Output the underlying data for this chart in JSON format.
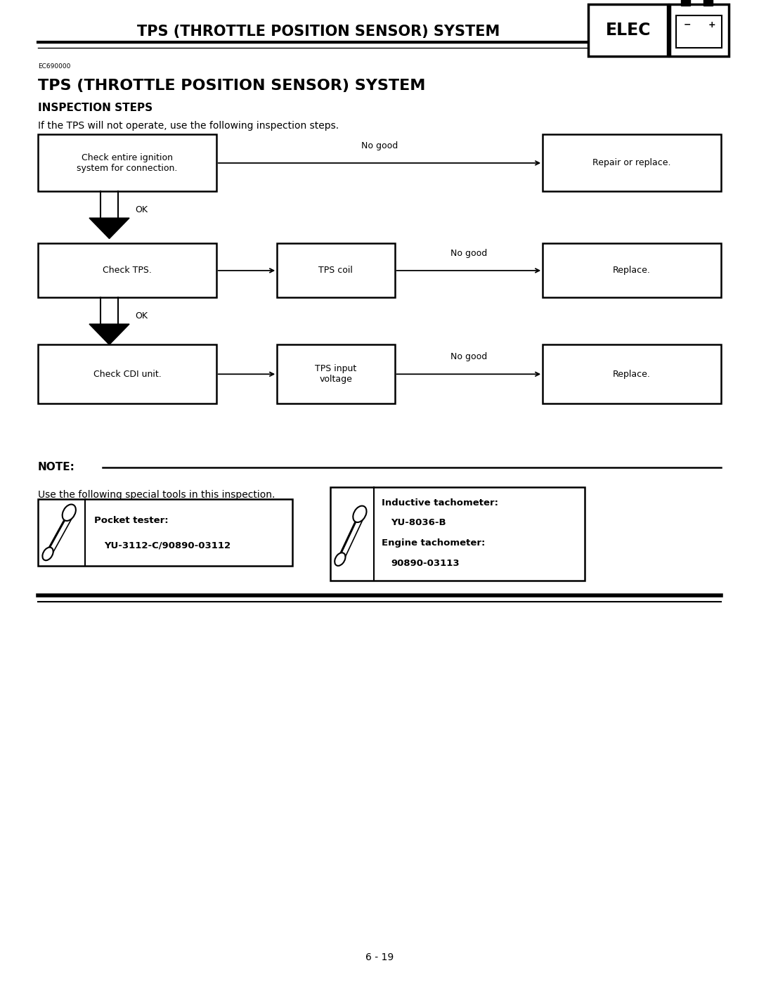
{
  "page_title": "TPS (THROTTLE POSITION SENSOR) SYSTEM",
  "elec_label": "ELEC",
  "section_code": "EC690000",
  "section_title": "TPS (THROTTLE POSITION SENSOR) SYSTEM",
  "subsection_title": "INSPECTION STEPS",
  "intro_text": "If the TPS will not operate, use the following inspection steps.",
  "note_label": "NOTE:",
  "note_text": "Use the following special tools in this inspection.",
  "tool1_name": "Pocket tester:",
  "tool1_code": "YU-3112-C/90890-03112",
  "tool2_line1": "Inductive tachometer:",
  "tool2_line2": "YU-8036-B",
  "tool2_line3": "Engine tachometer:",
  "tool2_line4": "90890-03113",
  "page_number": "6 - 19",
  "background": "#ffffff",
  "text_color": "#000000"
}
